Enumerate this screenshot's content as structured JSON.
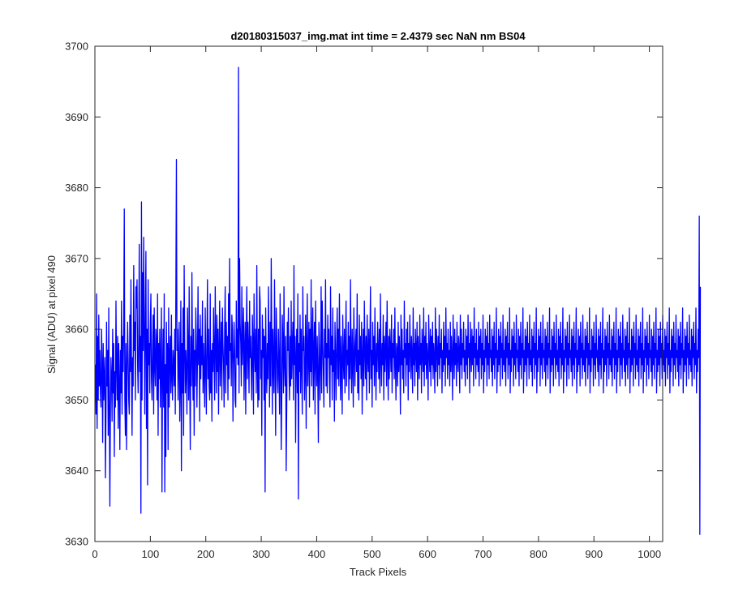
{
  "figure": {
    "background": "#ffffff"
  },
  "chart_data": {
    "type": "line",
    "title": "d20180315037_img.mat int time = 2.4379 sec  NaN nm BS04",
    "xlabel": "Track Pixels",
    "ylabel": "Signal (ADU) at pixel 490",
    "xlim": [
      0,
      1024
    ],
    "ylim": [
      3630,
      3700
    ],
    "xticks": [
      0,
      100,
      200,
      300,
      400,
      500,
      600,
      700,
      800,
      900,
      1000
    ],
    "yticks": [
      3630,
      3640,
      3650,
      3660,
      3670,
      3680,
      3690,
      3700
    ],
    "grid": false,
    "legend": "none",
    "line_color": "#0000ff",
    "series": [
      {
        "x_start": 1,
        "x_step": 1,
        "values": [
          3655,
          3648,
          3665,
          3646,
          3659,
          3650,
          3662,
          3652,
          3657,
          3651,
          3649,
          3660,
          3655,
          3644,
          3658,
          3650,
          3653,
          3656,
          3639,
          3648,
          3661,
          3652,
          3657,
          3645,
          3663,
          3650,
          3635,
          3649,
          3656,
          3653,
          3647,
          3660,
          3651,
          3658,
          3642,
          3654,
          3649,
          3664,
          3655,
          3650,
          3659,
          3646,
          3658,
          3652,
          3643,
          3657,
          3651,
          3664,
          3648,
          3659,
          3654,
          3661,
          3677,
          3650,
          3645,
          3658,
          3643,
          3654,
          3661,
          3656,
          3650,
          3648,
          3662,
          3654,
          3667,
          3655,
          3645,
          3656,
          3652,
          3669,
          3657,
          3661,
          3650,
          3666,
          3663,
          3667,
          3655,
          3651,
          3658,
          3672,
          3654,
          3659,
          3634,
          3678,
          3650,
          3668,
          3657,
          3673,
          3660,
          3648,
          3662,
          3671,
          3646,
          3660,
          3638,
          3667,
          3655,
          3658,
          3651,
          3661,
          3665,
          3653,
          3650,
          3657,
          3662,
          3648,
          3663,
          3655,
          3652,
          3660,
          3658,
          3650,
          3665,
          3645,
          3658,
          3653,
          3660,
          3649,
          3656,
          3663,
          3637,
          3654,
          3660,
          3649,
          3665,
          3637,
          3655,
          3642,
          3661,
          3651,
          3658,
          3643,
          3663,
          3649,
          3656,
          3659,
          3651,
          3662,
          3653,
          3650,
          3657,
          3655,
          3652,
          3660,
          3648,
          3665,
          3684,
          3657,
          3660,
          3650,
          3655,
          3661,
          3647,
          3653,
          3664,
          3640,
          3658,
          3651,
          3663,
          3645,
          3669,
          3658,
          3651,
          3657,
          3654,
          3648,
          3663,
          3657,
          3650,
          3666,
          3653,
          3643,
          3659,
          3652,
          3668,
          3656,
          3650,
          3660,
          3645,
          3657,
          3652,
          3663,
          3658,
          3649,
          3656,
          3666,
          3655,
          3660,
          3647,
          3662,
          3653,
          3659,
          3655,
          3664,
          3651,
          3658,
          3654,
          3649,
          3663,
          3655,
          3648,
          3658,
          3667,
          3653,
          3660,
          3652,
          3650,
          3665,
          3651,
          3657,
          3647,
          3658,
          3654,
          3663,
          3656,
          3650,
          3666,
          3658,
          3651,
          3662,
          3654,
          3660,
          3648,
          3657,
          3664,
          3652,
          3656,
          3661,
          3650,
          3663,
          3658,
          3655,
          3649,
          3660,
          3666,
          3651,
          3661,
          3655,
          3659,
          3650,
          3665,
          3653,
          3670,
          3657,
          3658,
          3652,
          3662,
          3660,
          3647,
          3655,
          3661,
          3657,
          3650,
          3649,
          3664,
          3656,
          3660,
          3655,
          3697,
          3651,
          3670,
          3661,
          3658,
          3652,
          3666,
          3655,
          3659,
          3663,
          3650,
          3657,
          3661,
          3648,
          3659,
          3666,
          3653,
          3661,
          3657,
          3651,
          3664,
          3656,
          3659,
          3654,
          3650,
          3662,
          3658,
          3648,
          3665,
          3657,
          3654,
          3660,
          3651,
          3669,
          3655,
          3649,
          3660,
          3650,
          3666,
          3664,
          3653,
          3657,
          3645,
          3662,
          3656,
          3660,
          3650,
          3659,
          3637,
          3663,
          3655,
          3651,
          3658,
          3653,
          3666,
          3657,
          3649,
          3661,
          3652,
          3670,
          3659,
          3648,
          3660,
          3655,
          3651,
          3667,
          3656,
          3645,
          3663,
          3659,
          3653,
          3651,
          3660,
          3655,
          3648,
          3665,
          3657,
          3643,
          3650,
          3662,
          3658,
          3651,
          3666,
          3655,
          3652,
          3659,
          3640,
          3649,
          3661,
          3657,
          3663,
          3654,
          3650,
          3659,
          3652,
          3664,
          3653,
          3657,
          3661,
          3650,
          3669,
          3655,
          3659,
          3644,
          3656,
          3660,
          3651,
          3665,
          3636,
          3658,
          3654,
          3662,
          3651,
          3660,
          3655,
          3648,
          3666,
          3657,
          3659,
          3650,
          3654,
          3662,
          3646,
          3658,
          3665,
          3652,
          3656,
          3661,
          3649,
          3660,
          3654,
          3667,
          3652,
          3658,
          3663,
          3650,
          3657,
          3661,
          3648,
          3664,
          3656,
          3652,
          3659,
          3653,
          3644,
          3661,
          3657,
          3650,
          3655,
          3666,
          3651,
          3664,
          3658,
          3654,
          3649,
          3660,
          3656,
          3667,
          3652,
          3658,
          3651,
          3662,
          3656,
          3660,
          3653,
          3649,
          3666,
          3655,
          3659,
          3650,
          3663,
          3654,
          3657,
          3647,
          3661,
          3656,
          3650,
          3658,
          3663,
          3653,
          3660,
          3652,
          3665,
          3657,
          3650,
          3659,
          3655,
          3648,
          3662,
          3656,
          3653,
          3660,
          3651,
          3658,
          3664,
          3652,
          3657,
          3655,
          3661,
          3650,
          3659,
          3653,
          3667,
          3656,
          3651,
          3660,
          3655,
          3649,
          3663,
          3657,
          3652,
          3658,
          3660,
          3654,
          3665,
          3651,
          3657,
          3650,
          3662,
          3655,
          3659,
          3653,
          3661,
          3648,
          3656,
          3660,
          3652,
          3664,
          3657,
          3653,
          3659,
          3650,
          3662,
          3656,
          3654,
          3660,
          3651,
          3658,
          3666,
          3653,
          3657,
          3649,
          3661,
          3655,
          3659,
          3652,
          3663,
          3656,
          3650,
          3658,
          3654,
          3661,
          3657,
          3653,
          3660,
          3651,
          3665,
          3656,
          3652,
          3658,
          3655,
          3662,
          3650,
          3659,
          3654,
          3657,
          3661,
          3652,
          3664,
          3656,
          3650,
          3659,
          3653,
          3660,
          3657,
          3654,
          3662,
          3651,
          3658,
          3656,
          3660,
          3653,
          3663,
          3655,
          3650,
          3658,
          3657,
          3652,
          3661,
          3654,
          3659,
          3656,
          3648,
          3662,
          3655,
          3660,
          3653,
          3657,
          3651,
          3664,
          3656,
          3658,
          3652,
          3660,
          3655,
          3661,
          3650,
          3658,
          3654,
          3662,
          3657,
          3653,
          3659,
          3656,
          3651,
          3663,
          3655,
          3658,
          3652,
          3660,
          3657,
          3654,
          3661,
          3650,
          3659,
          3656,
          3653,
          3662,
          3655,
          3658,
          3651,
          3660,
          3657,
          3654,
          3663,
          3652,
          3659,
          3655,
          3661,
          3653,
          3658,
          3656,
          3650,
          3662,
          3657,
          3654,
          3660,
          3652,
          3659,
          3655,
          3661,
          3653,
          3658,
          3656,
          3651,
          3663,
          3654,
          3660,
          3657,
          3652,
          3659,
          3655,
          3662,
          3653,
          3658,
          3656,
          3660,
          3651,
          3657,
          3654,
          3661,
          3655,
          3659,
          3652,
          3663,
          3656,
          3658,
          3653,
          3660,
          3655,
          3657,
          3652,
          3661,
          3654,
          3659,
          3656,
          3650,
          3662,
          3657,
          3653,
          3660,
          3655,
          3658,
          3652,
          3661,
          3656,
          3654,
          3659,
          3657,
          3651,
          3662,
          3655,
          3660,
          3653,
          3658,
          3656,
          3661,
          3654,
          3657,
          3652,
          3660,
          3655,
          3659,
          3653,
          3662,
          3656,
          3658,
          3651,
          3661,
          3657,
          3654,
          3660,
          3655,
          3659,
          3652,
          3663,
          3656,
          3658,
          3653,
          3660,
          3655,
          3657,
          3654,
          3661,
          3652,
          3659,
          3656,
          3660,
          3653,
          3658,
          3655,
          3662,
          3651,
          3657,
          3654,
          3660,
          3656,
          3659,
          3652,
          3661,
          3655,
          3658,
          3653,
          3662,
          3656,
          3657,
          3654,
          3660,
          3652,
          3659,
          3655,
          3661,
          3653,
          3658,
          3656,
          3663,
          3651,
          3657,
          3654,
          3660,
          3655,
          3659,
          3652,
          3661,
          3656,
          3658,
          3653,
          3662,
          3655,
          3657,
          3654,
          3660,
          3652,
          3659,
          3656,
          3661,
          3653,
          3658,
          3655,
          3663,
          3651,
          3657,
          3654,
          3660,
          3656,
          3659,
          3652,
          3661,
          3655,
          3658,
          3653,
          3662,
          3656,
          3657,
          3654,
          3660,
          3652,
          3659,
          3655,
          3661,
          3653,
          3658,
          3656,
          3663,
          3651,
          3657,
          3654,
          3660,
          3655,
          3659,
          3652,
          3661,
          3656,
          3658,
          3653,
          3662,
          3655,
          3657,
          3654,
          3660,
          3652,
          3659,
          3656,
          3661,
          3653,
          3658,
          3655,
          3663,
          3651,
          3657,
          3654,
          3660,
          3656,
          3659,
          3652,
          3661,
          3655,
          3658,
          3653,
          3662,
          3656,
          3657,
          3654,
          3660,
          3652,
          3659,
          3655,
          3661,
          3653,
          3658,
          3656,
          3663,
          3651,
          3657,
          3654,
          3660,
          3655,
          3659,
          3652,
          3661,
          3656,
          3658,
          3653,
          3662,
          3655,
          3657,
          3654,
          3660,
          3652,
          3659,
          3656,
          3661,
          3653,
          3658,
          3655,
          3663,
          3651,
          3657,
          3654,
          3660,
          3656,
          3659,
          3652,
          3661,
          3655,
          3658,
          3653,
          3662,
          3656,
          3657,
          3654,
          3660,
          3652,
          3659,
          3655,
          3661,
          3653,
          3658,
          3656,
          3663,
          3651,
          3657,
          3654,
          3660,
          3655,
          3659,
          3652,
          3661,
          3656,
          3658,
          3653,
          3662,
          3655,
          3657,
          3654,
          3660,
          3652,
          3659,
          3656,
          3661,
          3653,
          3658,
          3655,
          3663,
          3651,
          3657,
          3654,
          3660,
          3656,
          3659,
          3652,
          3661,
          3655,
          3658,
          3653,
          3662,
          3656,
          3657,
          3654,
          3660,
          3652,
          3659,
          3655,
          3661,
          3653,
          3658,
          3656,
          3663,
          3651,
          3657,
          3654,
          3660,
          3655,
          3659,
          3652,
          3661,
          3656,
          3658,
          3653,
          3662,
          3655,
          3657,
          3654,
          3660,
          3652,
          3659,
          3656,
          3661,
          3653,
          3658,
          3655,
          3663,
          3651,
          3657,
          3654,
          3660,
          3656,
          3659,
          3652,
          3661,
          3655,
          3658,
          3653,
          3662,
          3656,
          3657,
          3654,
          3660,
          3652,
          3659,
          3655,
          3661,
          3653,
          3658,
          3656,
          3663,
          3651,
          3657,
          3654,
          3660,
          3655,
          3659,
          3652,
          3661,
          3656,
          3658,
          3653,
          3662,
          3655,
          3657,
          3654,
          3660,
          3652,
          3659,
          3656,
          3661,
          3653,
          3658,
          3655,
          3663,
          3651,
          3657,
          3654,
          3660,
          3656,
          3659,
          3652,
          3661,
          3655,
          3658,
          3653,
          3662,
          3656,
          3657,
          3654,
          3660,
          3652,
          3659,
          3655,
          3661,
          3653,
          3658,
          3656,
          3663,
          3651,
          3657,
          3654,
          3660,
          3655,
          3659,
          3652,
          3661,
          3656,
          3658,
          3653,
          3662,
          3655,
          3657,
          3654,
          3660,
          3652,
          3659,
          3656,
          3661,
          3653,
          3658,
          3655,
          3663,
          3651,
          3657,
          3654,
          3660,
          3656,
          3659,
          3652,
          3661,
          3655,
          3658,
          3653,
          3662,
          3656,
          3657,
          3654,
          3660,
          3652,
          3659,
          3655,
          3661,
          3653,
          3658,
          3656,
          3663,
          3651,
          3657,
          3654,
          3660,
          3655,
          3659,
          3652,
          3661,
          3656,
          3658,
          3653,
          3662,
          3655,
          3657,
          3654,
          3660,
          3652,
          3659,
          3656,
          3661,
          3653,
          3658,
          3655,
          3663,
          3651,
          3657,
          3654,
          3660,
          3656,
          3676,
          3631,
          3666
        ]
      }
    ]
  }
}
